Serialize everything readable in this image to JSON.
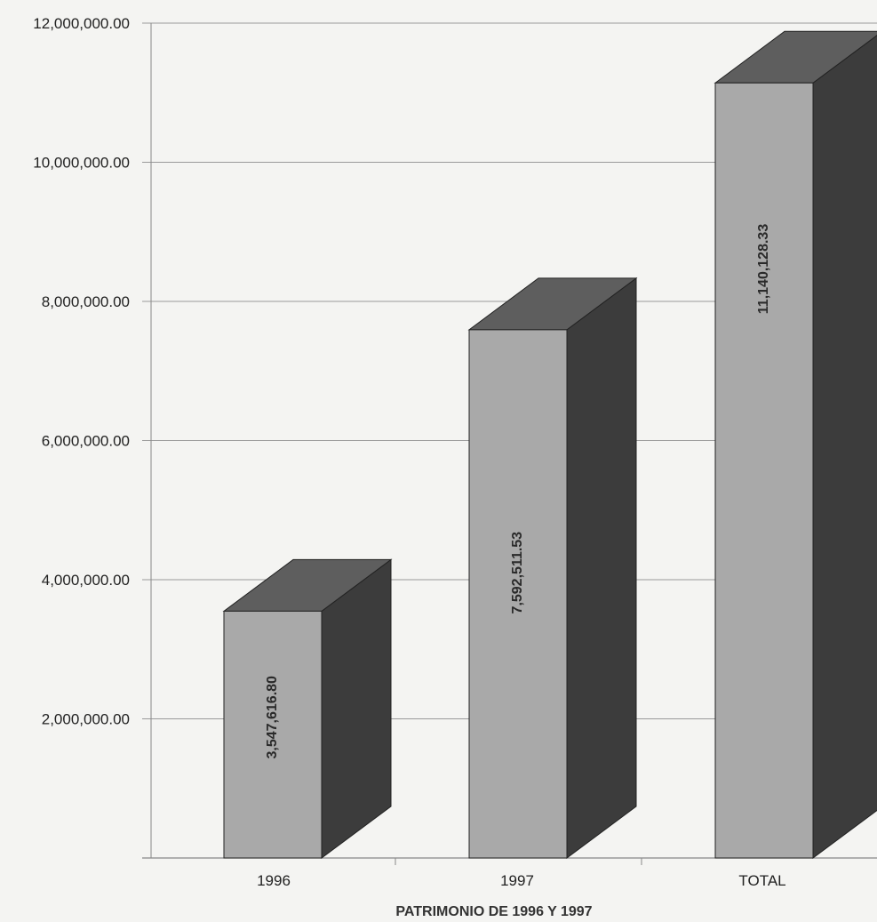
{
  "chart_data": {
    "type": "bar",
    "categories": [
      "1996",
      "1997",
      "TOTAL"
    ],
    "values": [
      3547616.8,
      7592511.53,
      11140128.33
    ],
    "data_labels": [
      "3,547,616.80",
      "7,592,511.53",
      "11,140,128.33"
    ],
    "y_ticks": [
      0,
      2000000,
      4000000,
      6000000,
      8000000,
      10000000,
      12000000
    ],
    "y_tick_labels": [
      "",
      "2,000,000.00",
      "4,000,000.00",
      "6,000,000.00",
      "8,000,000.00",
      "10,000,000.00",
      "12,000,000.00"
    ],
    "ylim": [
      0,
      12000000
    ],
    "xlabel": "PATRIMONIO DE 1996 Y 1997",
    "ylabel": "",
    "title": "",
    "grid": true,
    "style": "3d-bar",
    "colors": {
      "front": "#a9a9a9",
      "top": "#5e5e5e",
      "side": "#3c3c3c",
      "grid": "#9a9a9a",
      "axis": "#888888"
    }
  }
}
